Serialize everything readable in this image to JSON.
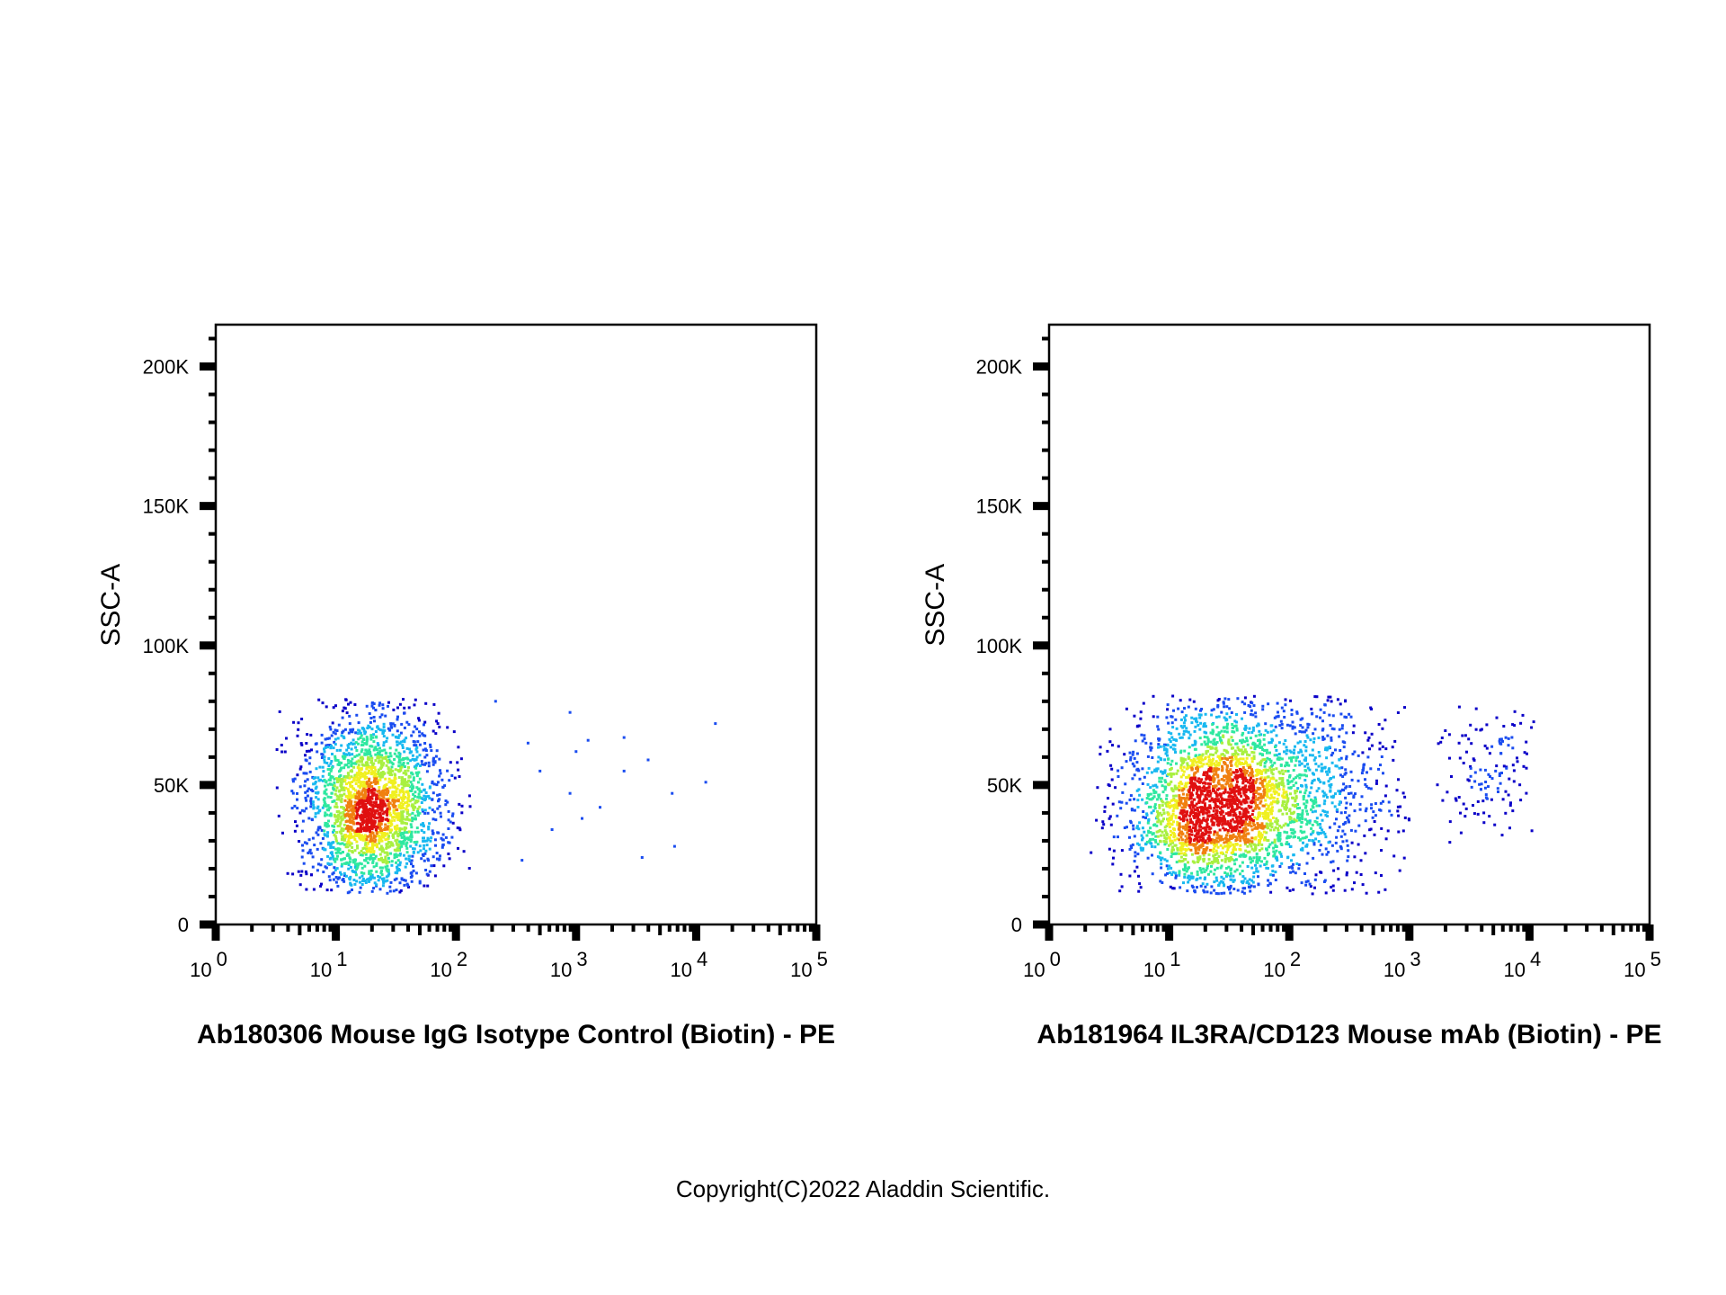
{
  "chart_data": [
    {
      "type": "scatter",
      "xscale": "log",
      "xlim": [
        1,
        100000
      ],
      "ylim": [
        0,
        215000
      ],
      "ylabel": "SSC-A",
      "xlabel": "Ab180306 Mouse IgG Isotype Control (Biotin) - PE",
      "x_ticks": [
        {
          "base": "10",
          "exp": "0"
        },
        {
          "base": "10",
          "exp": "1"
        },
        {
          "base": "10",
          "exp": "2"
        },
        {
          "base": "10",
          "exp": "3"
        },
        {
          "base": "10",
          "exp": "4"
        },
        {
          "base": "10",
          "exp": "5"
        }
      ],
      "y_ticks": [
        {
          "value": 0,
          "label": "0"
        },
        {
          "value": 50000,
          "label": "50K"
        },
        {
          "value": 100000,
          "label": "100K"
        },
        {
          "value": 150000,
          "label": "150K"
        },
        {
          "value": 200000,
          "label": "200K"
        }
      ],
      "colormap": [
        "#0a00c8",
        "#1a4cf0",
        "#18b8f0",
        "#2ee8a0",
        "#a8f040",
        "#f0f020",
        "#f08010",
        "#e01010"
      ],
      "populations": [
        {
          "x_log_center": 1.3,
          "x_log_sd": 0.28,
          "x_log_min": 0.5,
          "x_log_max": 2.15,
          "y_center": 42000,
          "y_sd": 16000,
          "y_min": 11000,
          "y_max": 82000,
          "weight": 1.0
        }
      ],
      "outliers": [
        [
          2.33,
          80000
        ],
        [
          2.95,
          76000
        ],
        [
          2.6,
          65000
        ],
        [
          3.1,
          66000
        ],
        [
          3.4,
          67000
        ],
        [
          3.6,
          59000
        ],
        [
          3.8,
          47000
        ],
        [
          3.4,
          55000
        ],
        [
          4.16,
          72000
        ],
        [
          4.08,
          51000
        ],
        [
          3.82,
          28000
        ],
        [
          3.55,
          24000
        ],
        [
          3.05,
          38000
        ],
        [
          2.8,
          34000
        ],
        [
          2.55,
          23000
        ],
        [
          3.2,
          42000
        ],
        [
          2.95,
          47000
        ],
        [
          3.0,
          62000
        ],
        [
          2.7,
          55000
        ]
      ],
      "n_points": 2400
    },
    {
      "type": "scatter",
      "xscale": "log",
      "xlim": [
        1,
        100000
      ],
      "ylim": [
        0,
        215000
      ],
      "ylabel": "SSC-A",
      "xlabel": "Ab181964 IL3RA/CD123 Mouse mAb (Biotin) - PE",
      "x_ticks": [
        {
          "base": "10",
          "exp": "0"
        },
        {
          "base": "10",
          "exp": "1"
        },
        {
          "base": "10",
          "exp": "2"
        },
        {
          "base": "10",
          "exp": "3"
        },
        {
          "base": "10",
          "exp": "4"
        },
        {
          "base": "10",
          "exp": "5"
        }
      ],
      "y_ticks": [
        {
          "value": 0,
          "label": "0"
        },
        {
          "value": 50000,
          "label": "50K"
        },
        {
          "value": 100000,
          "label": "100K"
        },
        {
          "value": 150000,
          "label": "150K"
        },
        {
          "value": 200000,
          "label": "200K"
        }
      ],
      "colormap": [
        "#0a00c8",
        "#1a4cf0",
        "#18b8f0",
        "#2ee8a0",
        "#a8f040",
        "#f0f020",
        "#f08010",
        "#e01010"
      ],
      "populations": [
        {
          "x_log_center": 1.35,
          "x_log_sd": 0.35,
          "x_log_min": 0.3,
          "x_log_max": 2.5,
          "y_center": 42000,
          "y_sd": 16000,
          "y_min": 11000,
          "y_max": 82000,
          "weight": 0.7
        },
        {
          "x_log_center": 2.0,
          "x_log_sd": 0.45,
          "x_log_min": 0.5,
          "x_log_max": 3.0,
          "y_center": 48000,
          "y_sd": 18000,
          "y_min": 11000,
          "y_max": 82000,
          "weight": 0.3
        },
        {
          "x_log_center": 3.65,
          "x_log_sd": 0.2,
          "x_log_min": 3.2,
          "x_log_max": 4.05,
          "y_center": 55000,
          "y_sd": 12000,
          "y_min": 27000,
          "y_max": 83000,
          "weight": 0.04
        }
      ],
      "outliers": [],
      "n_points": 3400
    }
  ],
  "copyright": "Copyright(C)2022 Aladdin Scientific."
}
